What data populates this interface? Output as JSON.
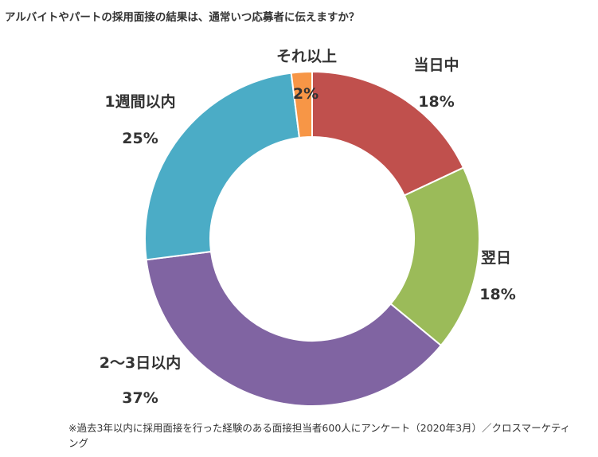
{
  "title": "アルバイトやパートの採用面接の結果は、通常いつ応募者に伝えますか？",
  "footnote": "※過去3年以内に採用面接を行った経験のある面接担当者600人にアンケート（2020年3月）／クロスマーケティング",
  "chart_data": {
    "type": "pie",
    "donut": true,
    "categories": [
      "当日中",
      "翌日",
      "2〜3日以内",
      "1週間以内",
      "それ以上"
    ],
    "values": [
      18,
      18,
      37,
      25,
      2
    ],
    "value_labels": [
      "18%",
      "18%",
      "37%",
      "25%",
      "2%"
    ],
    "unit": "%",
    "colors": [
      "#c0504d",
      "#9bbb59",
      "#8064a2",
      "#4bacc6",
      "#f79646"
    ],
    "start": "12 o'clock",
    "direction": "clockwise",
    "legend": "none"
  }
}
